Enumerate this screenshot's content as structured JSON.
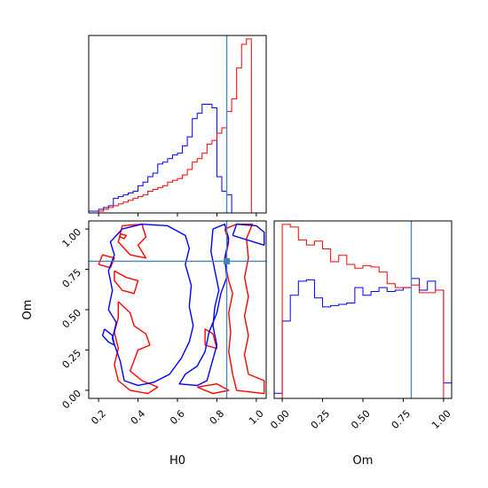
{
  "chart_data": [
    {
      "type": "histogram",
      "panel": "H0 marginal",
      "x_range": [
        0.15,
        1.05
      ],
      "truth": 0.85,
      "x_ticks": [
        "0.2",
        "0.4",
        "0.6",
        "0.8",
        "1.0"
      ],
      "series": [
        {
          "color": "#0000ff",
          "bin_edges": [
            0.15,
            0.175,
            0.2,
            0.225,
            0.25,
            0.275,
            0.3,
            0.325,
            0.35,
            0.375,
            0.4,
            0.425,
            0.45,
            0.475,
            0.5,
            0.525,
            0.55,
            0.575,
            0.6,
            0.625,
            0.65,
            0.675,
            0.7,
            0.725,
            0.75,
            0.775,
            0.8,
            0.825,
            0.85,
            0.875,
            0.9
          ],
          "values": [
            1,
            1,
            2,
            3,
            4,
            8,
            9,
            10,
            11,
            12,
            15,
            17,
            20,
            22,
            27,
            28,
            30,
            32,
            33,
            37,
            42,
            52,
            55,
            60,
            60,
            58,
            20,
            12,
            10,
            0
          ]
        },
        {
          "color": "#ff0000",
          "bin_edges": [
            0.15,
            0.175,
            0.2,
            0.225,
            0.25,
            0.275,
            0.3,
            0.325,
            0.35,
            0.375,
            0.4,
            0.425,
            0.45,
            0.475,
            0.5,
            0.525,
            0.55,
            0.575,
            0.6,
            0.625,
            0.65,
            0.675,
            0.7,
            0.725,
            0.75,
            0.775,
            0.8,
            0.825,
            0.85,
            0.875,
            0.9,
            0.925,
            0.95,
            0.975,
            1.0
          ],
          "values": [
            0,
            0,
            1,
            2,
            3,
            4,
            5,
            6,
            7,
            8,
            9,
            10,
            12,
            13,
            14,
            15,
            17,
            18,
            19,
            21,
            24,
            28,
            30,
            33,
            38,
            40,
            44,
            47,
            56,
            63,
            80,
            93,
            96,
            0
          ]
        }
      ]
    },
    {
      "type": "contour",
      "panel": "H0 vs Om joint",
      "xlabel": "H0",
      "ylabel": "Om",
      "x_range": [
        0.15,
        1.05
      ],
      "y_range": [
        -0.05,
        1.05
      ],
      "x_ticks": [
        "0.2",
        "0.4",
        "0.6",
        "0.8",
        "1.0"
      ],
      "y_ticks": [
        "0.00",
        "0.25",
        "0.50",
        "0.75",
        "1.00"
      ],
      "truth": {
        "H0": 0.85,
        "Om": 0.8
      },
      "series": [
        {
          "color": "#0000ff",
          "contours": [
            [
              [
                0.32,
                1.0
              ],
              [
                0.42,
                1.03
              ],
              [
                0.55,
                1.02
              ],
              [
                0.64,
                0.96
              ],
              [
                0.66,
                0.88
              ],
              [
                0.64,
                0.78
              ],
              [
                0.67,
                0.65
              ],
              [
                0.66,
                0.52
              ],
              [
                0.68,
                0.4
              ],
              [
                0.66,
                0.3
              ],
              [
                0.62,
                0.2
              ],
              [
                0.56,
                0.1
              ],
              [
                0.48,
                0.05
              ],
              [
                0.4,
                0.03
              ],
              [
                0.33,
                0.06
              ],
              [
                0.31,
                0.18
              ],
              [
                0.27,
                0.32
              ],
              [
                0.29,
                0.42
              ],
              [
                0.25,
                0.5
              ],
              [
                0.27,
                0.62
              ],
              [
                0.25,
                0.74
              ],
              [
                0.28,
                0.84
              ],
              [
                0.26,
                0.92
              ],
              [
                0.32,
                1.0
              ]
            ],
            [
              [
                0.78,
                1.0
              ],
              [
                0.84,
                1.03
              ],
              [
                0.86,
                0.94
              ],
              [
                0.84,
                0.82
              ],
              [
                0.85,
                0.7
              ],
              [
                0.82,
                0.6
              ],
              [
                0.8,
                0.48
              ],
              [
                0.76,
                0.36
              ],
              [
                0.74,
                0.24
              ],
              [
                0.7,
                0.15
              ],
              [
                0.64,
                0.1
              ],
              [
                0.61,
                0.04
              ],
              [
                0.7,
                0.03
              ],
              [
                0.75,
                0.06
              ],
              [
                0.77,
                0.15
              ],
              [
                0.8,
                0.28
              ],
              [
                0.78,
                0.4
              ],
              [
                0.79,
                0.52
              ],
              [
                0.81,
                0.62
              ],
              [
                0.79,
                0.74
              ],
              [
                0.77,
                0.86
              ],
              [
                0.78,
                1.0
              ]
            ],
            [
              [
                0.88,
                0.96
              ],
              [
                0.9,
                1.03
              ],
              [
                1.0,
                1.02
              ],
              [
                1.04,
                0.98
              ],
              [
                1.04,
                0.9
              ],
              [
                0.96,
                0.93
              ],
              [
                0.88,
                0.96
              ]
            ],
            [
              [
                0.23,
                0.38
              ],
              [
                0.27,
                0.34
              ],
              [
                0.28,
                0.28
              ],
              [
                0.25,
                0.3
              ],
              [
                0.22,
                0.34
              ],
              [
                0.23,
                0.38
              ]
            ]
          ]
        },
        {
          "color": "#ff0000",
          "contours": [
            [
              [
                0.32,
                1.02
              ],
              [
                0.42,
                1.03
              ],
              [
                0.44,
                0.95
              ],
              [
                0.4,
                0.9
              ],
              [
                0.44,
                0.82
              ],
              [
                0.36,
                0.84
              ],
              [
                0.3,
                0.92
              ],
              [
                0.32,
                1.02
              ]
            ],
            [
              [
                0.28,
                0.74
              ],
              [
                0.34,
                0.7
              ],
              [
                0.4,
                0.68
              ],
              [
                0.38,
                0.6
              ],
              [
                0.32,
                0.62
              ],
              [
                0.28,
                0.68
              ],
              [
                0.28,
                0.74
              ]
            ],
            [
              [
                0.2,
                0.78
              ],
              [
                0.26,
                0.76
              ],
              [
                0.28,
                0.82
              ],
              [
                0.22,
                0.84
              ],
              [
                0.2,
                0.78
              ]
            ],
            [
              [
                0.3,
                0.55
              ],
              [
                0.36,
                0.48
              ],
              [
                0.38,
                0.4
              ],
              [
                0.44,
                0.35
              ],
              [
                0.46,
                0.28
              ],
              [
                0.4,
                0.25
              ],
              [
                0.36,
                0.12
              ],
              [
                0.42,
                0.06
              ],
              [
                0.5,
                0.02
              ],
              [
                0.45,
                -0.02
              ],
              [
                0.36,
                0.0
              ],
              [
                0.3,
                0.06
              ],
              [
                0.28,
                0.16
              ],
              [
                0.3,
                0.26
              ],
              [
                0.28,
                0.36
              ],
              [
                0.3,
                0.45
              ],
              [
                0.3,
                0.55
              ]
            ],
            [
              [
                0.74,
                0.28
              ],
              [
                0.8,
                0.26
              ],
              [
                0.78,
                0.35
              ],
              [
                0.74,
                0.38
              ],
              [
                0.74,
                0.28
              ]
            ],
            [
              [
                0.7,
                0.02
              ],
              [
                0.78,
                -0.02
              ],
              [
                0.86,
                0.0
              ],
              [
                0.8,
                0.04
              ],
              [
                0.7,
                0.02
              ]
            ],
            [
              [
                0.84,
                1.0
              ],
              [
                0.86,
                0.92
              ],
              [
                0.84,
                0.8
              ],
              [
                0.86,
                0.68
              ],
              [
                0.88,
                0.6
              ],
              [
                0.86,
                0.48
              ],
              [
                0.87,
                0.36
              ],
              [
                0.86,
                0.24
              ],
              [
                0.88,
                0.1
              ],
              [
                0.9,
                0.0
              ],
              [
                1.04,
                -0.02
              ],
              [
                1.04,
                0.06
              ],
              [
                0.96,
                0.1
              ],
              [
                0.94,
                0.22
              ],
              [
                0.96,
                0.34
              ],
              [
                0.94,
                0.46
              ],
              [
                0.96,
                0.58
              ],
              [
                0.94,
                0.7
              ],
              [
                0.96,
                0.82
              ],
              [
                0.95,
                0.94
              ],
              [
                0.98,
                1.03
              ],
              [
                0.9,
                1.03
              ],
              [
                0.84,
                1.0
              ]
            ],
            [
              [
                0.31,
                0.97
              ],
              [
                0.34,
                0.96
              ],
              [
                0.33,
                0.94
              ],
              [
                0.31,
                0.95
              ],
              [
                0.31,
                0.97
              ]
            ]
          ]
        }
      ]
    },
    {
      "type": "histogram",
      "panel": "Om marginal",
      "xlabel": "Om",
      "x_range": [
        -0.05,
        1.05
      ],
      "truth": 0.8,
      "x_ticks": [
        "0.00",
        "0.25",
        "0.50",
        "0.75",
        "1.00"
      ],
      "series": [
        {
          "color": "#0000ff",
          "bin_edges": [
            -0.05,
            0.0,
            0.05,
            0.1,
            0.15,
            0.2,
            0.25,
            0.3,
            0.35,
            0.4,
            0.45,
            0.5,
            0.55,
            0.6,
            0.65,
            0.7,
            0.75,
            0.8,
            0.85,
            0.9,
            0.95,
            1.0,
            1.05
          ],
          "values": [
            4,
            60,
            80,
            91,
            92,
            78,
            71,
            72,
            73,
            74,
            86,
            80,
            83,
            86,
            83,
            84,
            86,
            93,
            84,
            91,
            84,
            12
          ]
        },
        {
          "color": "#ff0000",
          "bin_edges": [
            -0.05,
            0.0,
            0.05,
            0.1,
            0.15,
            0.2,
            0.25,
            0.3,
            0.35,
            0.4,
            0.45,
            0.5,
            0.55,
            0.6,
            0.65,
            0.7,
            0.75,
            0.8,
            0.85,
            0.9,
            0.95,
            1.0,
            1.05
          ],
          "values": [
            0,
            135,
            133,
            123,
            119,
            122,
            116,
            106,
            111,
            104,
            101,
            103,
            102,
            98,
            89,
            86,
            86,
            88,
            82,
            82,
            84,
            0
          ]
        }
      ]
    }
  ],
  "labels": {
    "x_bottom_left": "H0",
    "x_bottom_right": "Om",
    "y_left": "Om"
  },
  "colors": {
    "truth": "#4682b4",
    "blue": "#0000ff",
    "red": "#ff0000"
  }
}
